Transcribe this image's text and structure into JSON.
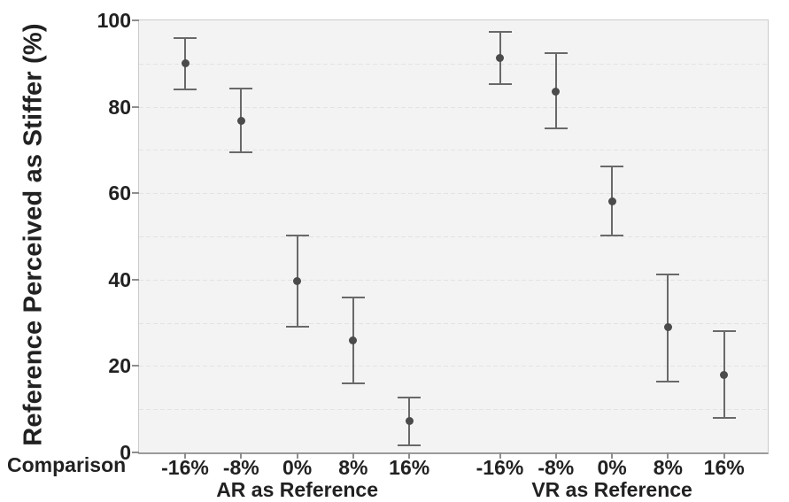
{
  "chart_data": {
    "type": "scatter",
    "title": "",
    "ylabel": "Reference Perceived as Stiffer (%)",
    "xlabel": "Comparison",
    "ylim": [
      0,
      100
    ],
    "yticks": [
      0,
      20,
      40,
      60,
      80,
      100
    ],
    "gridline_step": 10,
    "grid": "horizontal dashed every 10",
    "legend": "none",
    "categories": [
      "-16%",
      "-8%",
      "0%",
      "8%",
      "16%"
    ],
    "error_bars": "shown",
    "groups": [
      {
        "label": "AR as Reference",
        "series": [
          {
            "category": "-16%",
            "mean": 90.0,
            "ci_low": 84.0,
            "ci_high": 96.0
          },
          {
            "category": "-8%",
            "mean": 76.8,
            "ci_low": 69.4,
            "ci_high": 84.2
          },
          {
            "category": "0%",
            "mean": 39.7,
            "ci_low": 29.2,
            "ci_high": 50.3
          },
          {
            "category": "8%",
            "mean": 25.9,
            "ci_low": 16.0,
            "ci_high": 35.8
          },
          {
            "category": "16%",
            "mean": 7.3,
            "ci_low": 1.6,
            "ci_high": 12.8
          }
        ]
      },
      {
        "label": "VR as Reference",
        "series": [
          {
            "category": "-16%",
            "mean": 91.3,
            "ci_low": 85.3,
            "ci_high": 97.3
          },
          {
            "category": "-8%",
            "mean": 83.6,
            "ci_low": 74.9,
            "ci_high": 92.4
          },
          {
            "category": "0%",
            "mean": 58.0,
            "ci_low": 50.2,
            "ci_high": 66.2
          },
          {
            "category": "8%",
            "mean": 28.9,
            "ci_low": 16.4,
            "ci_high": 41.2
          },
          {
            "category": "16%",
            "mean": 17.9,
            "ci_low": 7.9,
            "ci_high": 28.1
          }
        ]
      }
    ],
    "colors": {
      "marker": "#4b4b4b",
      "error_bar": "#696969",
      "plot_background": "#f2f3f2",
      "gridline": "#e2e3e3",
      "plot_border": "#cbcbcb",
      "bottom_axis": "#9b9b9b",
      "tick": "#8d8d8d",
      "text": "#212121"
    }
  }
}
